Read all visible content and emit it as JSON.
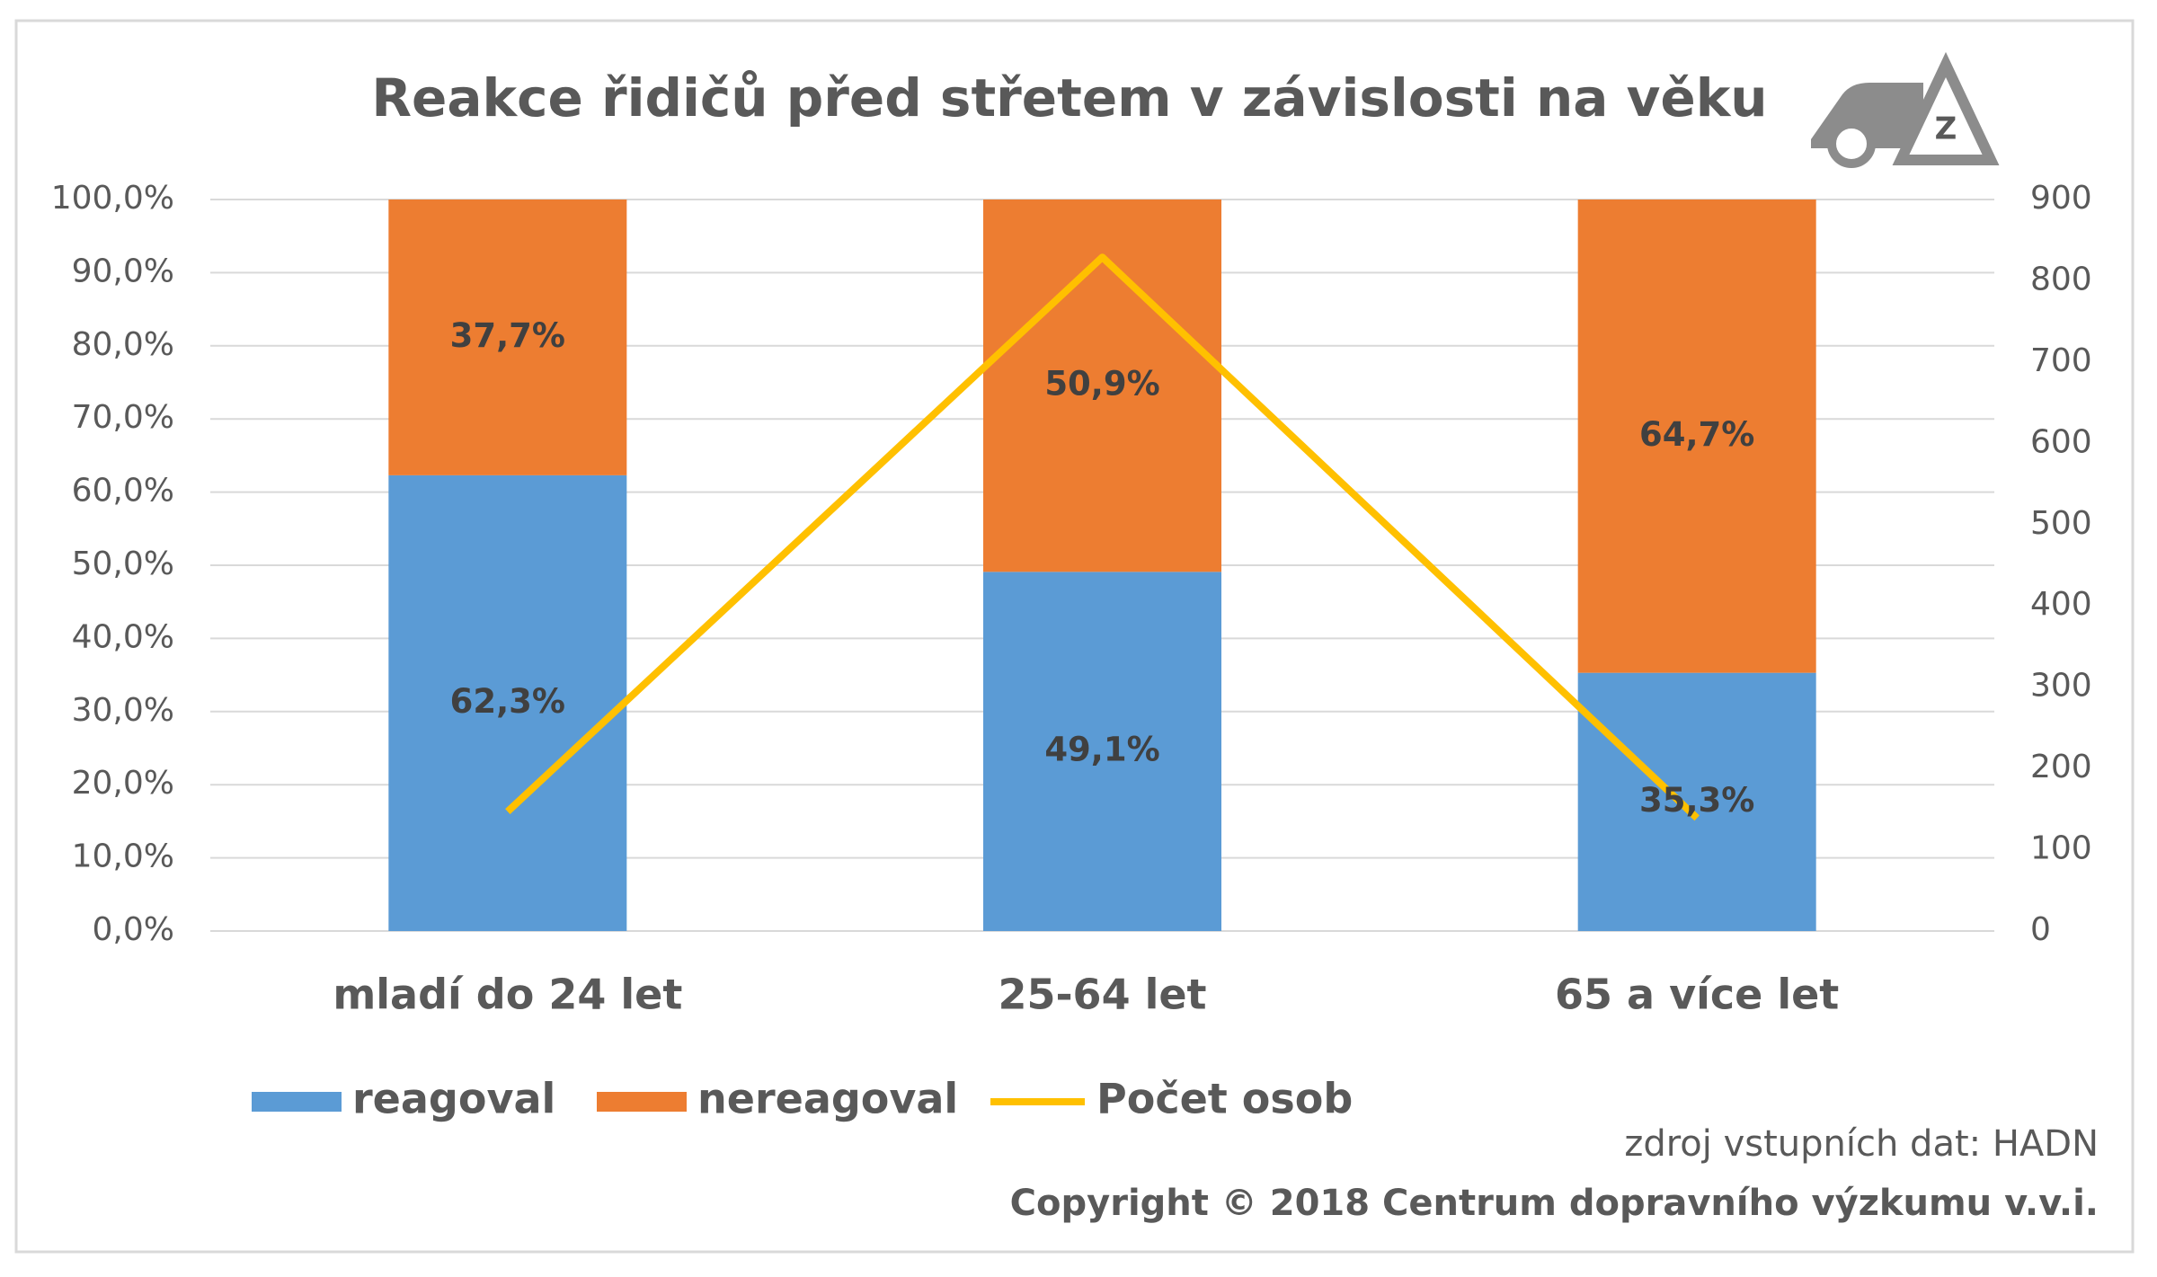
{
  "chart_data": {
    "type": "bar",
    "stacked": true,
    "title": "Reakce řidičů před střetem v závislosti na věku",
    "logo_text": "Z",
    "categories": [
      "mladí do 24 let",
      "25-64 let",
      "65 a více let"
    ],
    "series": [
      {
        "name": "reagoval",
        "color": "#5b9bd5",
        "values": [
          62.3,
          49.1,
          35.3
        ],
        "value_labels": [
          "62,3%",
          "49,1%",
          "35,3%"
        ]
      },
      {
        "name": "nereagoval",
        "color": "#ed7d31",
        "values": [
          37.7,
          50.9,
          64.7
        ],
        "value_labels": [
          "37,7%",
          "50,9%",
          "64,7%"
        ]
      },
      {
        "name": "Počet osob",
        "color": "#ffc000",
        "type": "line",
        "axis": "y2",
        "values": [
          147,
          829,
          139
        ]
      }
    ],
    "ylim": [
      0,
      100
    ],
    "yticks": [
      {
        "value": 0,
        "label": "0,0%"
      },
      {
        "value": 10,
        "label": "10,0%"
      },
      {
        "value": 20,
        "label": "20,0%"
      },
      {
        "value": 30,
        "label": "30,0%"
      },
      {
        "value": 40,
        "label": "40,0%"
      },
      {
        "value": 50,
        "label": "50,0%"
      },
      {
        "value": 60,
        "label": "60,0%"
      },
      {
        "value": 70,
        "label": "70,0%"
      },
      {
        "value": 80,
        "label": "80,0%"
      },
      {
        "value": 90,
        "label": "90,0%"
      },
      {
        "value": 100,
        "label": "100,0%"
      }
    ],
    "y2lim": [
      0,
      900
    ],
    "y2ticks": [
      0,
      100,
      200,
      300,
      400,
      500,
      600,
      700,
      800,
      900
    ],
    "grid": true,
    "legend": "bottom",
    "source": "zdroj vstupních dat: HADN",
    "copyright": "Copyright  © 2018 Centrum dopravního výzkumu v.v.i."
  }
}
